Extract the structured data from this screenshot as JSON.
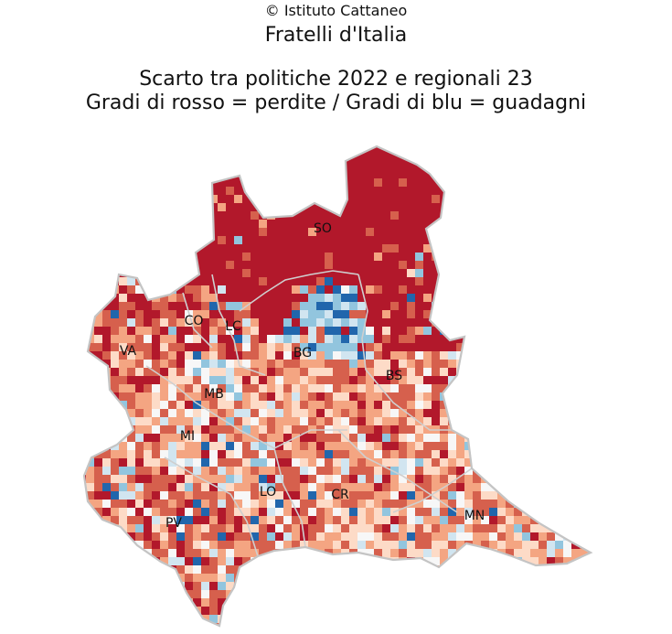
{
  "credit": "© Istituto Cattaneo",
  "party": "Fratelli d'Italia",
  "title_line1": "Scarto tra politiche 2022 e regionali 23",
  "title_line2": "Gradi di rosso = perdite / Gradi di blu = guadagni",
  "colors": {
    "strong_loss": "#b2182b",
    "loss": "#d6604d",
    "mild_loss": "#f4a582",
    "slight_loss": "#fddbc7",
    "neutral": "#f7f7f7",
    "slight_gain": "#d1e5f0",
    "gain": "#92c5de",
    "strong_gain": "#2166ac",
    "border": "#bdbdbd"
  },
  "provinces": [
    {
      "code": "SO"
    },
    {
      "code": "CO"
    },
    {
      "code": "LC"
    },
    {
      "code": "VA"
    },
    {
      "code": "BG"
    },
    {
      "code": "BS"
    },
    {
      "code": "MB"
    },
    {
      "code": "MI"
    },
    {
      "code": "LO"
    },
    {
      "code": "CR"
    },
    {
      "code": "PV"
    },
    {
      "code": "MN"
    }
  ]
}
